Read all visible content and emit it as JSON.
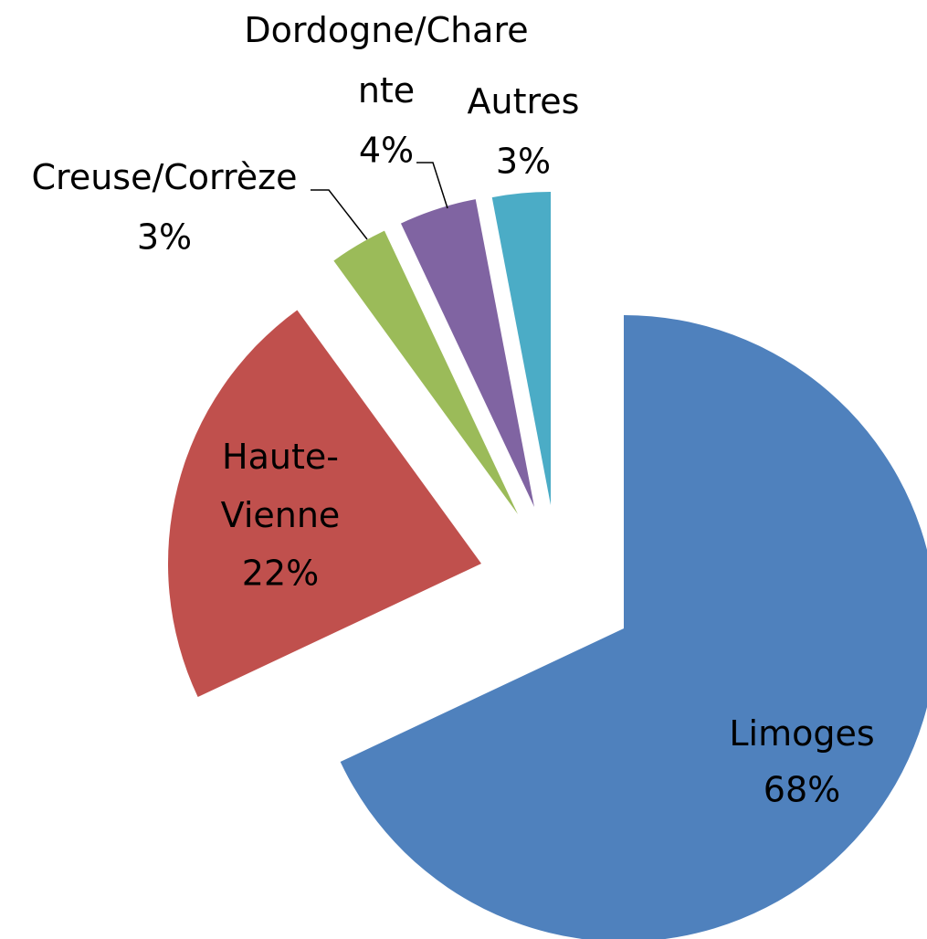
{
  "chart_data": {
    "type": "pie",
    "categories": [
      "Limoges",
      "Haute-Vienne",
      "Creuse/Corrèze",
      "Dordogne/Charente",
      "Autres"
    ],
    "values": [
      68,
      22,
      3,
      4,
      3
    ],
    "value_labels": [
      "68%",
      "22%",
      "3%",
      "4%",
      "3%"
    ],
    "colors": [
      "#4f81bd",
      "#c0504d",
      "#9bbb59",
      "#8064a2",
      "#4bacc6"
    ]
  }
}
